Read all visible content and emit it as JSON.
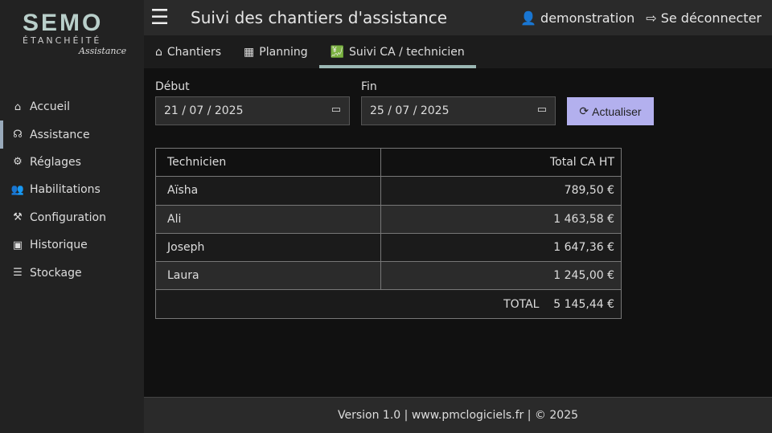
{
  "logo": {
    "brand": "SEMO",
    "subtitle": "ÉTANCHÉITÉ",
    "tagline": "Assistance"
  },
  "sidebar": {
    "items": [
      {
        "label": "Accueil",
        "icon": "home-icon"
      },
      {
        "label": "Assistance",
        "icon": "headset-icon",
        "active": true
      },
      {
        "label": "Réglages",
        "icon": "gears-icon"
      },
      {
        "label": "Habilitations",
        "icon": "users-icon"
      },
      {
        "label": "Configuration",
        "icon": "wrench-icon"
      },
      {
        "label": "Historique",
        "icon": "history-icon"
      },
      {
        "label": "Stockage",
        "icon": "database-icon"
      }
    ]
  },
  "header": {
    "title": "Suivi des chantiers d'assistance",
    "user": "demonstration",
    "logout": "Se déconnecter"
  },
  "tabs": [
    {
      "label": "Chantiers"
    },
    {
      "label": "Planning"
    },
    {
      "label": "Suivi CA / technicien",
      "active": true
    }
  ],
  "filters": {
    "start_label": "Début",
    "start_value": "21 / 07 / 2025",
    "end_label": "Fin",
    "end_value": "25 / 07 / 2025",
    "refresh": "Actualiser"
  },
  "table": {
    "headers": [
      "Technicien",
      "Total CA HT"
    ],
    "rows": [
      [
        "Aïsha",
        "789,50 €"
      ],
      [
        "Ali",
        "1 463,58 €"
      ],
      [
        "Joseph",
        "1 647,36 €"
      ],
      [
        "Laura",
        "1 245,00 €"
      ]
    ],
    "total_label": "TOTAL",
    "total_value": "5 145,44 €"
  },
  "footer": {
    "version": "Version 1.0 |",
    "link": "www.pmclogiciels.fr",
    "copyright": "| © 2025"
  },
  "colors": {
    "accent": "#b3b0ee",
    "tab_underline": "#9bb8b4"
  }
}
